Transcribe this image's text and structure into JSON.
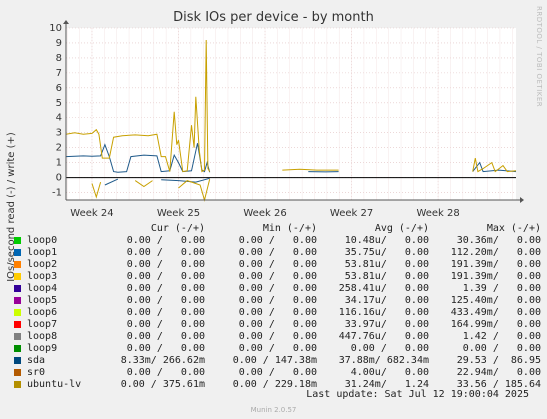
{
  "chart_data": {
    "type": "line",
    "title": "Disk IOs per device - by month",
    "ylabel": "IOs/second read (-) / write (+)",
    "ylim": [
      -1.5,
      10
    ],
    "yticks": [
      -1,
      0,
      1,
      2,
      3,
      4,
      5,
      6,
      7,
      8,
      9,
      10
    ],
    "xlim": [
      23.7,
      28.9
    ],
    "xticks": [
      {
        "value": 24,
        "label": "Week 24"
      },
      {
        "value": 25,
        "label": "Week 25"
      },
      {
        "value": 26,
        "label": "Week 26"
      },
      {
        "value": 27,
        "label": "Week 27"
      },
      {
        "value": 28,
        "label": "Week 28"
      }
    ],
    "grid": true,
    "series": [
      {
        "name": "sda",
        "color": "#1f5a8a",
        "write": [
          [
            23.7,
            1.4
          ],
          [
            23.9,
            1.45
          ],
          [
            24.0,
            1.42
          ],
          [
            24.1,
            1.45
          ],
          [
            24.15,
            2.2
          ],
          [
            24.2,
            1.4
          ],
          [
            24.25,
            0.4
          ],
          [
            24.3,
            0.35
          ],
          [
            24.4,
            0.4
          ],
          [
            24.45,
            1.4
          ],
          [
            24.6,
            1.5
          ],
          [
            24.75,
            1.45
          ],
          [
            24.8,
            0.4
          ],
          [
            24.9,
            0.45
          ],
          [
            24.95,
            1.5
          ],
          [
            25.0,
            1.0
          ],
          [
            25.05,
            0.4
          ],
          [
            25.15,
            0.45
          ],
          [
            25.22,
            2.3
          ],
          [
            25.27,
            0.5
          ],
          [
            25.3,
            0.4
          ],
          [
            25.33,
            1.0
          ],
          [
            25.36,
            0.35
          ],
          [
            26.2,
            0.4
          ],
          [
            26.5,
            0.4
          ],
          [
            26.7,
            0.38
          ],
          [
            26.85,
            0.4
          ],
          [
            28.4,
            0.4
          ],
          [
            28.48,
            1.0
          ],
          [
            28.52,
            0.4
          ],
          [
            28.7,
            0.5
          ],
          [
            28.9,
            0.4
          ]
        ],
        "read": [
          [
            23.7,
            -0.05
          ],
          [
            24.15,
            -0.5
          ],
          [
            24.3,
            -0.1
          ],
          [
            24.8,
            -0.15
          ],
          [
            25.0,
            -0.2
          ],
          [
            25.2,
            -0.3
          ],
          [
            25.36,
            -0.05
          ],
          [
            26.2,
            -0.05
          ],
          [
            26.85,
            -0.05
          ],
          [
            28.4,
            -0.05
          ],
          [
            28.9,
            -0.05
          ]
        ]
      },
      {
        "name": "ubuntu-lv",
        "color": "#c8a000",
        "write": [
          [
            23.7,
            2.9
          ],
          [
            23.8,
            3.0
          ],
          [
            23.9,
            2.9
          ],
          [
            24.0,
            2.95
          ],
          [
            24.05,
            3.2
          ],
          [
            24.08,
            2.9
          ],
          [
            24.12,
            1.3
          ],
          [
            24.2,
            1.3
          ],
          [
            24.25,
            2.7
          ],
          [
            24.35,
            2.8
          ],
          [
            24.5,
            2.85
          ],
          [
            24.65,
            2.8
          ],
          [
            24.75,
            2.9
          ],
          [
            24.8,
            1.4
          ],
          [
            24.85,
            1.4
          ],
          [
            24.9,
            0.4
          ],
          [
            24.95,
            4.4
          ],
          [
            24.98,
            2.2
          ],
          [
            25.0,
            2.5
          ],
          [
            25.05,
            0.4
          ],
          [
            25.1,
            0.45
          ],
          [
            25.15,
            3.5
          ],
          [
            25.18,
            2.0
          ],
          [
            25.2,
            5.4
          ],
          [
            25.24,
            1.8
          ],
          [
            25.27,
            0.4
          ],
          [
            25.3,
            0.5
          ],
          [
            25.32,
            9.2
          ],
          [
            25.34,
            0.6
          ],
          [
            25.36,
            0.4
          ],
          [
            26.2,
            0.5
          ],
          [
            26.4,
            0.55
          ],
          [
            26.6,
            0.5
          ],
          [
            26.85,
            0.5
          ],
          [
            28.4,
            0.4
          ],
          [
            28.43,
            1.3
          ],
          [
            28.46,
            0.4
          ],
          [
            28.52,
            0.6
          ],
          [
            28.62,
            1.0
          ],
          [
            28.66,
            0.4
          ],
          [
            28.75,
            0.8
          ],
          [
            28.8,
            0.4
          ],
          [
            28.9,
            0.45
          ]
        ],
        "read": [
          [
            23.7,
            -0.1
          ],
          [
            24.0,
            -0.4
          ],
          [
            24.05,
            -1.3
          ],
          [
            24.1,
            -0.3
          ],
          [
            24.5,
            -0.2
          ],
          [
            24.6,
            -0.6
          ],
          [
            24.7,
            -0.2
          ],
          [
            25.0,
            -0.7
          ],
          [
            25.1,
            -0.2
          ],
          [
            25.25,
            -0.5
          ],
          [
            25.3,
            -1.5
          ],
          [
            25.36,
            -0.1
          ],
          [
            26.2,
            -0.1
          ],
          [
            26.85,
            -0.1
          ],
          [
            28.4,
            -0.1
          ],
          [
            28.9,
            -0.1
          ]
        ]
      }
    ],
    "legend": {
      "headers": [
        "Cur (-/+)",
        "Min (-/+)",
        "Avg (-/+)",
        "Max (-/+)"
      ],
      "rows": [
        {
          "name": "loop0",
          "color": "#00cc00",
          "cur": "0.00 /   0.00",
          "min": "0.00 /   0.00",
          "avg": "10.48u/   0.00",
          "max": "30.36m/   0.00"
        },
        {
          "name": "loop1",
          "color": "#0066b3",
          "cur": "0.00 /   0.00",
          "min": "0.00 /   0.00",
          "avg": "35.75u/   0.00",
          "max": "112.20m/   0.00"
        },
        {
          "name": "loop2",
          "color": "#ff8000",
          "cur": "0.00 /   0.00",
          "min": "0.00 /   0.00",
          "avg": "53.81u/   0.00",
          "max": "191.39m/   0.00"
        },
        {
          "name": "loop3",
          "color": "#ffcc00",
          "cur": "0.00 /   0.00",
          "min": "0.00 /   0.00",
          "avg": "53.81u/   0.00",
          "max": "191.39m/   0.00"
        },
        {
          "name": "loop4",
          "color": "#330099",
          "cur": "0.00 /   0.00",
          "min": "0.00 /   0.00",
          "avg": "258.41u/   0.00",
          "max": "1.39 /   0.00"
        },
        {
          "name": "loop5",
          "color": "#990099",
          "cur": "0.00 /   0.00",
          "min": "0.00 /   0.00",
          "avg": "34.17u/   0.00",
          "max": "125.40m/   0.00"
        },
        {
          "name": "loop6",
          "color": "#ccff00",
          "cur": "0.00 /   0.00",
          "min": "0.00 /   0.00",
          "avg": "116.16u/   0.00",
          "max": "433.49m/   0.00"
        },
        {
          "name": "loop7",
          "color": "#ff0000",
          "cur": "0.00 /   0.00",
          "min": "0.00 /   0.00",
          "avg": "33.97u/   0.00",
          "max": "164.99m/   0.00"
        },
        {
          "name": "loop8",
          "color": "#808080",
          "cur": "0.00 /   0.00",
          "min": "0.00 /   0.00",
          "avg": "447.76u/   0.00",
          "max": "1.42 /   0.00"
        },
        {
          "name": "loop9",
          "color": "#008f00",
          "cur": "0.00 /   0.00",
          "min": "0.00 /   0.00",
          "avg": "0.00 /   0.00",
          "max": "0.00 /   0.00"
        },
        {
          "name": "sda",
          "color": "#00487d",
          "cur": "8.33m/ 266.62m",
          "min": "0.00 / 147.38m",
          "avg": "37.88m/ 682.34m",
          "max": "29.53 /  86.95"
        },
        {
          "name": "sr0",
          "color": "#b35a00",
          "cur": "0.00 /   0.00",
          "min": "0.00 /   0.00",
          "avg": "4.00u/   0.00",
          "max": "22.94m/   0.00"
        },
        {
          "name": "ubuntu-lv",
          "color": "#b38f00",
          "cur": "0.00 / 375.61m",
          "min": "0.00 / 229.18m",
          "avg": "31.24m/   1.24",
          "max": "33.56 / 185.64"
        }
      ]
    }
  },
  "watermark": "RRDTOOL / TOBI OETIKER",
  "last_update": "Last update: Sat Jul 12 19:00:04 2025",
  "credit": "Munin 2.0.57",
  "colors": {
    "background": "#f0f0f0",
    "plot_bg": "#ffffff",
    "grid": "#e0c0c0",
    "axis": "#000000"
  }
}
